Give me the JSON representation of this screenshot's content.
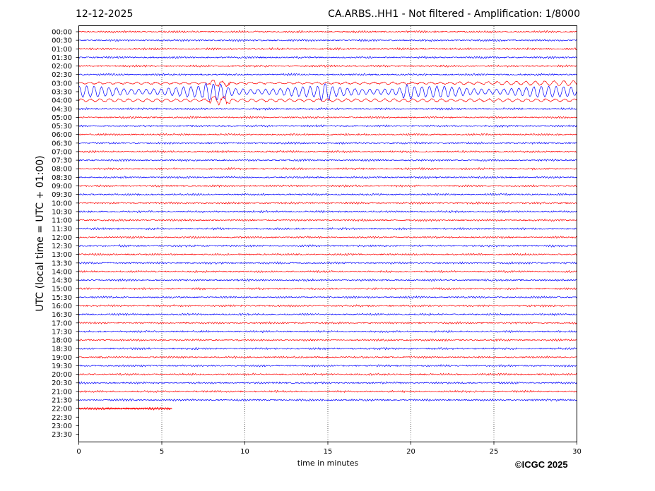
{
  "header": {
    "date": "12-12-2025",
    "title": "CA.ARBS..HH1 - Not filtered - Amplification: 1/8000"
  },
  "footer": {
    "copyright": "©ICGC 2025"
  },
  "colors": {
    "even_rows": "#ff0000",
    "odd_rows": "#0000ff"
  },
  "chart_data": {
    "type": "line",
    "title": "CA.ARBS..HH1 - Not filtered - Amplification: 1/8000",
    "xlabel": "time in minutes",
    "ylabel": "UTC (local time = UTC + 01:00)",
    "xlim": [
      0,
      30
    ],
    "x_ticks": [
      "0",
      "5",
      "10",
      "15",
      "20",
      "25",
      "30"
    ],
    "grid": "vertical dotted lines at 5-minute intervals",
    "rows": [
      "00:00",
      "00:30",
      "01:00",
      "01:30",
      "02:00",
      "02:30",
      "03:00",
      "03:30",
      "04:00",
      "04:30",
      "05:00",
      "05:30",
      "06:00",
      "06:30",
      "07:00",
      "07:30",
      "08:00",
      "08:30",
      "09:00",
      "09:30",
      "10:00",
      "10:30",
      "11:00",
      "11:30",
      "12:00",
      "12:30",
      "13:00",
      "13:30",
      "14:00",
      "14:30",
      "15:00",
      "15:30",
      "16:00",
      "16:30",
      "17:00",
      "17:30",
      "18:00",
      "18:30",
      "19:00",
      "19:30",
      "20:00",
      "20:30",
      "21:00",
      "21:30",
      "22:00",
      "22:30",
      "23:00",
      "23:30"
    ],
    "data_end": {
      "row": "22:00",
      "minute": 5.6
    },
    "events": [
      {
        "rows": [
          "03:00",
          "03:30",
          "04:00"
        ],
        "description": "large-amplitude oscillation",
        "start_minute": 0,
        "end_minute": 30
      }
    ]
  }
}
